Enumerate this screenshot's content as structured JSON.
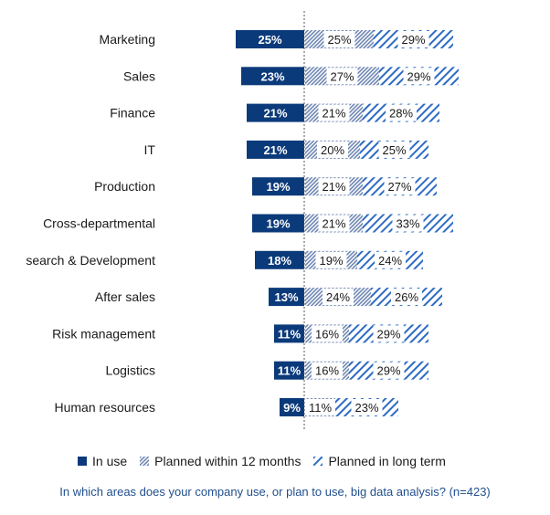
{
  "chart_data": {
    "type": "bar",
    "stacked": true,
    "orientation": "horizontal",
    "categories": [
      "Marketing",
      "Sales",
      "Finance",
      "IT",
      "Production",
      "Cross-departmental",
      "search & Development",
      "After sales",
      "Risk management",
      "Logistics",
      "Human resources"
    ],
    "series": [
      {
        "name": "In use",
        "color": "#0b3a7a",
        "pattern": "solid",
        "values": [
          25,
          23,
          21,
          21,
          19,
          19,
          18,
          13,
          11,
          11,
          9
        ]
      },
      {
        "name": "Planned within 12 months",
        "color": "#6f87b3",
        "pattern": "dense-hatch",
        "values": [
          25,
          27,
          21,
          20,
          21,
          21,
          19,
          24,
          16,
          16,
          11
        ]
      },
      {
        "name": "Planned in long term",
        "color": "#2e6cc4",
        "pattern": "diagonal-hatch",
        "values": [
          29,
          29,
          28,
          25,
          27,
          33,
          24,
          26,
          29,
          29,
          23
        ]
      }
    ],
    "value_suffix": "%",
    "legend_position": "bottom",
    "grid": false
  },
  "legend": {
    "in_use": "In use",
    "planned_12": "Planned within 12 months",
    "planned_long": "Planned in long term"
  },
  "footnote": "In which areas does your company use, or plan to use, big data analysis? (n=423)"
}
